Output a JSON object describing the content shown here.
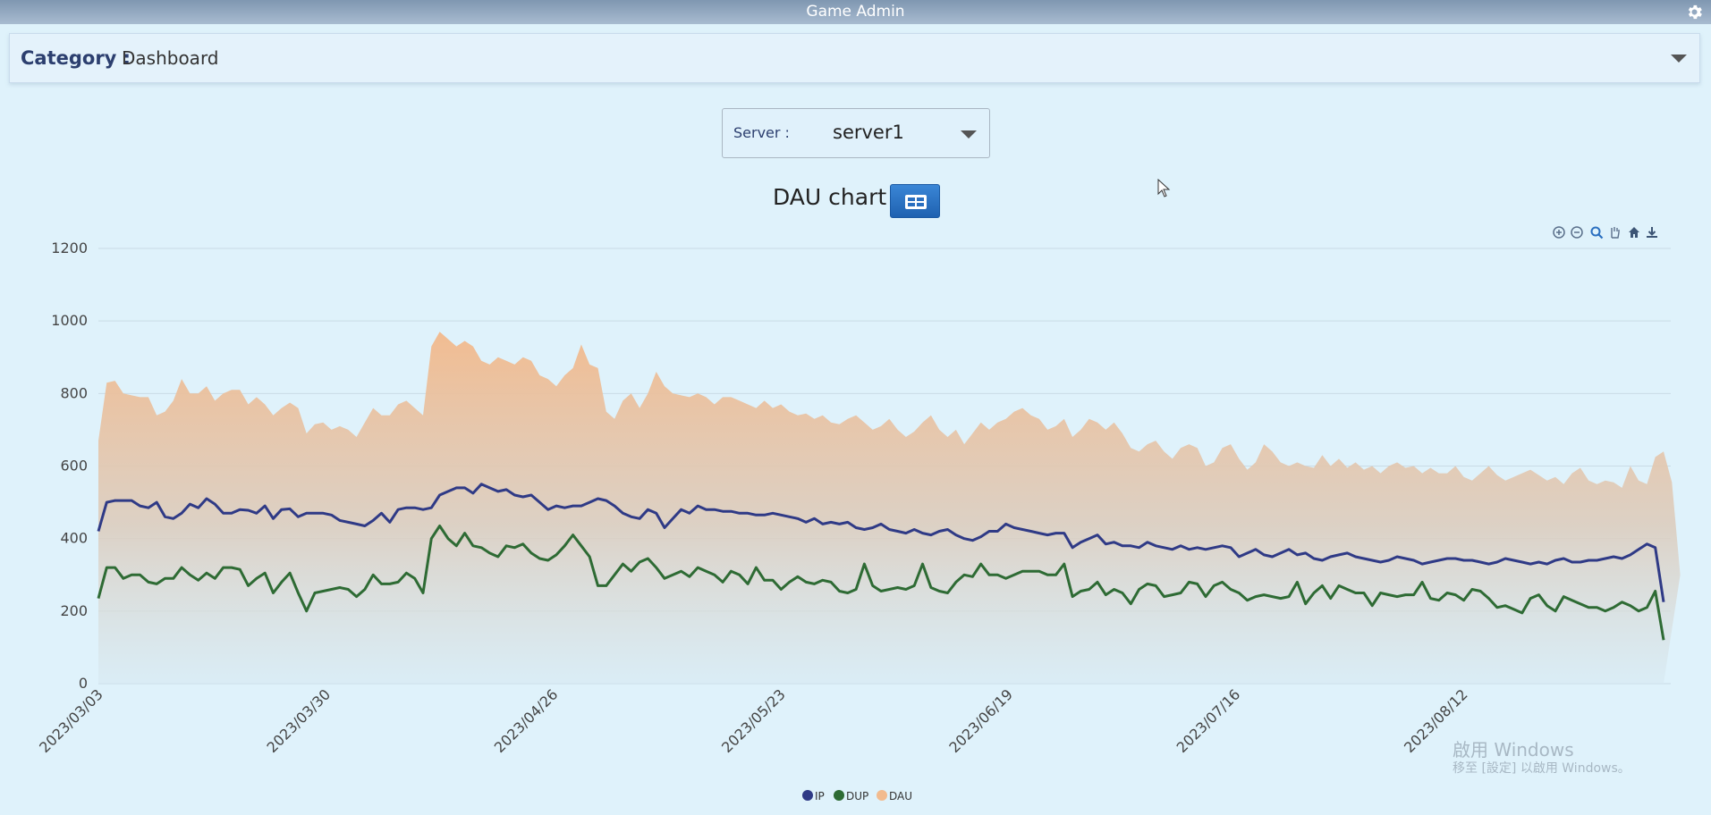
{
  "window": {
    "title": "Game Admin"
  },
  "category": {
    "label": "Category :",
    "value": "Dashboard"
  },
  "server": {
    "label": "Server :",
    "value": "server1"
  },
  "chart_title": "DAU chart",
  "toolbar_icons": [
    "zoom-in-icon",
    "zoom-out-icon",
    "zoom-icon",
    "pan-icon",
    "home-icon",
    "download-icon"
  ],
  "watermark": {
    "line1": "啟用 Windows",
    "line2": "移至 [設定] 以啟用 Windows。"
  },
  "colors": {
    "IP": "#2f3a86",
    "DUP": "#2e6b34",
    "DAU": "#f2bb8f"
  },
  "chart_data": {
    "type": "area",
    "title": "DAU chart",
    "ylim": [
      0,
      1200
    ],
    "yticks": [
      0,
      200,
      400,
      600,
      800,
      1000,
      1200
    ],
    "grid": true,
    "legend_position": "bottom-center",
    "x_start": "2023/03/03",
    "x_end": "2023/09/11",
    "xticks": [
      "2023/03/03",
      "2023/03/30",
      "2023/04/26",
      "2023/05/23",
      "2023/06/19",
      "2023/07/16",
      "2023/08/12"
    ],
    "series": [
      {
        "name": "IP",
        "style": "line",
        "values": [
          420,
          500,
          505,
          505,
          505,
          490,
          485,
          500,
          460,
          455,
          470,
          495,
          485,
          510,
          495,
          470,
          470,
          480,
          478,
          470,
          490,
          455,
          480,
          482,
          460,
          470,
          470,
          470,
          465,
          450,
          445,
          440,
          435,
          450,
          470,
          445,
          480,
          485,
          485,
          480,
          485,
          520,
          530,
          540,
          540,
          525,
          550,
          540,
          530,
          535,
          520,
          515,
          520,
          500,
          480,
          490,
          485,
          490,
          490,
          500,
          510,
          505,
          490,
          470,
          460,
          455,
          480,
          470,
          430,
          455,
          480,
          470,
          490,
          480,
          480,
          475,
          475,
          470,
          470,
          465,
          465,
          470,
          465,
          460,
          455,
          445,
          455,
          440,
          445,
          440,
          445,
          430,
          425,
          430,
          440,
          425,
          420,
          415,
          425,
          415,
          410,
          420,
          425,
          410,
          400,
          395,
          405,
          420,
          420,
          440,
          430,
          425,
          420,
          415,
          410,
          415,
          415,
          375,
          390,
          400,
          410,
          385,
          390,
          380,
          380,
          375,
          390,
          380,
          375,
          370,
          380,
          370,
          375,
          370,
          375,
          380,
          375,
          350,
          360,
          370,
          355,
          350,
          360,
          370,
          355,
          360,
          345,
          340,
          350,
          355,
          360,
          350,
          345,
          340,
          335,
          340,
          350,
          345,
          340,
          330,
          335,
          340,
          345,
          345,
          340,
          340,
          335,
          330,
          335,
          345,
          340,
          335,
          330,
          335,
          330,
          340,
          345,
          335,
          335,
          340,
          340,
          345,
          350,
          345,
          355,
          370,
          385,
          375,
          225
        ]
      },
      {
        "name": "DUP",
        "style": "line",
        "values": [
          235,
          320,
          320,
          290,
          300,
          300,
          280,
          275,
          290,
          290,
          320,
          300,
          285,
          305,
          290,
          320,
          320,
          315,
          270,
          290,
          305,
          250,
          280,
          305,
          250,
          200,
          250,
          255,
          260,
          265,
          260,
          240,
          260,
          300,
          275,
          275,
          280,
          305,
          290,
          250,
          400,
          435,
          400,
          380,
          415,
          380,
          375,
          360,
          350,
          380,
          375,
          385,
          360,
          345,
          340,
          355,
          380,
          410,
          380,
          350,
          270,
          270,
          300,
          330,
          310,
          335,
          345,
          320,
          290,
          300,
          310,
          295,
          320,
          310,
          300,
          280,
          310,
          300,
          275,
          320,
          285,
          285,
          260,
          280,
          295,
          280,
          275,
          285,
          280,
          255,
          250,
          260,
          330,
          270,
          255,
          260,
          265,
          260,
          270,
          330,
          265,
          255,
          250,
          280,
          300,
          295,
          330,
          300,
          300,
          290,
          300,
          310,
          310,
          310,
          300,
          300,
          330,
          240,
          255,
          260,
          280,
          245,
          260,
          250,
          220,
          260,
          275,
          270,
          240,
          245,
          250,
          280,
          275,
          240,
          270,
          280,
          260,
          250,
          230,
          240,
          245,
          240,
          235,
          240,
          280,
          220,
          250,
          270,
          235,
          270,
          260,
          250,
          250,
          215,
          250,
          245,
          240,
          245,
          245,
          280,
          235,
          230,
          250,
          245,
          230,
          260,
          255,
          235,
          210,
          215,
          205,
          195,
          235,
          245,
          215,
          200,
          240,
          230,
          220,
          210,
          210,
          200,
          210,
          225,
          215,
          200,
          210,
          255,
          120
        ]
      },
      {
        "name": "DAU",
        "style": "area",
        "values": [
          670,
          830,
          835,
          800,
          795,
          790,
          790,
          740,
          750,
          780,
          840,
          800,
          800,
          820,
          780,
          800,
          810,
          810,
          770,
          790,
          770,
          740,
          760,
          775,
          760,
          690,
          715,
          720,
          700,
          710,
          700,
          680,
          720,
          760,
          740,
          740,
          770,
          780,
          760,
          740,
          930,
          970,
          950,
          930,
          945,
          930,
          890,
          880,
          900,
          890,
          880,
          900,
          890,
          850,
          840,
          820,
          850,
          870,
          935,
          880,
          870,
          750,
          730,
          780,
          800,
          760,
          800,
          860,
          820,
          800,
          795,
          790,
          800,
          790,
          770,
          790,
          790,
          780,
          770,
          760,
          780,
          760,
          770,
          750,
          740,
          745,
          730,
          740,
          720,
          715,
          730,
          740,
          720,
          700,
          710,
          730,
          700,
          680,
          695,
          720,
          740,
          700,
          680,
          700,
          660,
          690,
          720,
          700,
          720,
          730,
          750,
          760,
          740,
          730,
          700,
          710,
          730,
          680,
          700,
          730,
          720,
          700,
          720,
          690,
          650,
          640,
          660,
          670,
          640,
          620,
          650,
          660,
          650,
          600,
          610,
          650,
          660,
          620,
          590,
          610,
          660,
          640,
          610,
          600,
          610,
          600,
          595,
          630,
          600,
          620,
          595,
          610,
          590,
          600,
          580,
          600,
          610,
          595,
          600,
          580,
          595,
          580,
          580,
          600,
          570,
          560,
          580,
          600,
          575,
          560,
          570,
          580,
          590,
          575,
          560,
          570,
          550,
          580,
          595,
          560,
          550,
          560,
          555,
          540,
          600,
          560,
          550,
          625,
          640,
          555,
          300
        ]
      }
    ]
  }
}
